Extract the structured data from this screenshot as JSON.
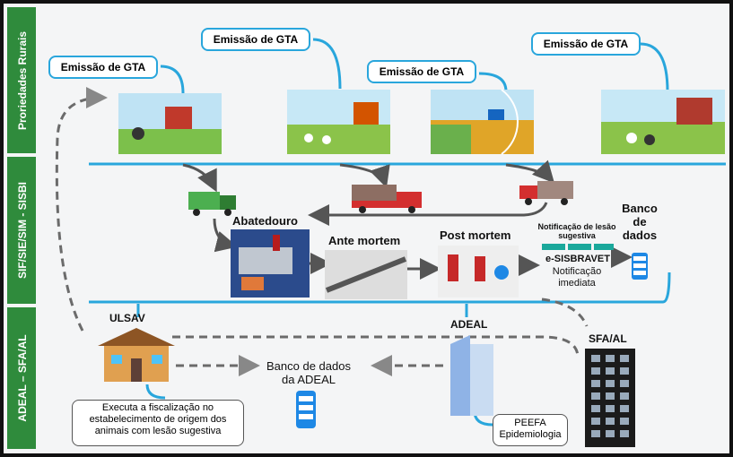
{
  "lanes": [
    "Proriedades Rurais",
    "SIF/SIE/SIM - SISBI",
    "ADEAL – SFA/AL"
  ],
  "gta_callouts": [
    "Emissão de GTA",
    "Emissão de GTA",
    "Emissão de GTA",
    "Emissão de GTA"
  ],
  "slaughter": {
    "abatedouro": "Abatedouro",
    "ante_mortem": "Ante mortem",
    "post_mortem": "Post mortem",
    "notification": "Notificação de lesão sugestiva",
    "system": "e-SISBRAVET",
    "immediate": "Notificação imediata",
    "database": "Banco de dados"
  },
  "agencies": {
    "ulsav": "ULSAV",
    "adeal": "ADEAL",
    "sfa": "SFA/AL",
    "adeal_database": "Banco de dados da ADEAL",
    "ulsav_note": "Executa a fiscalização no estabelecimento de origem dos animais com lesão sugestiva",
    "peefa": [
      "PEEFA",
      "Epidemiologia"
    ]
  }
}
